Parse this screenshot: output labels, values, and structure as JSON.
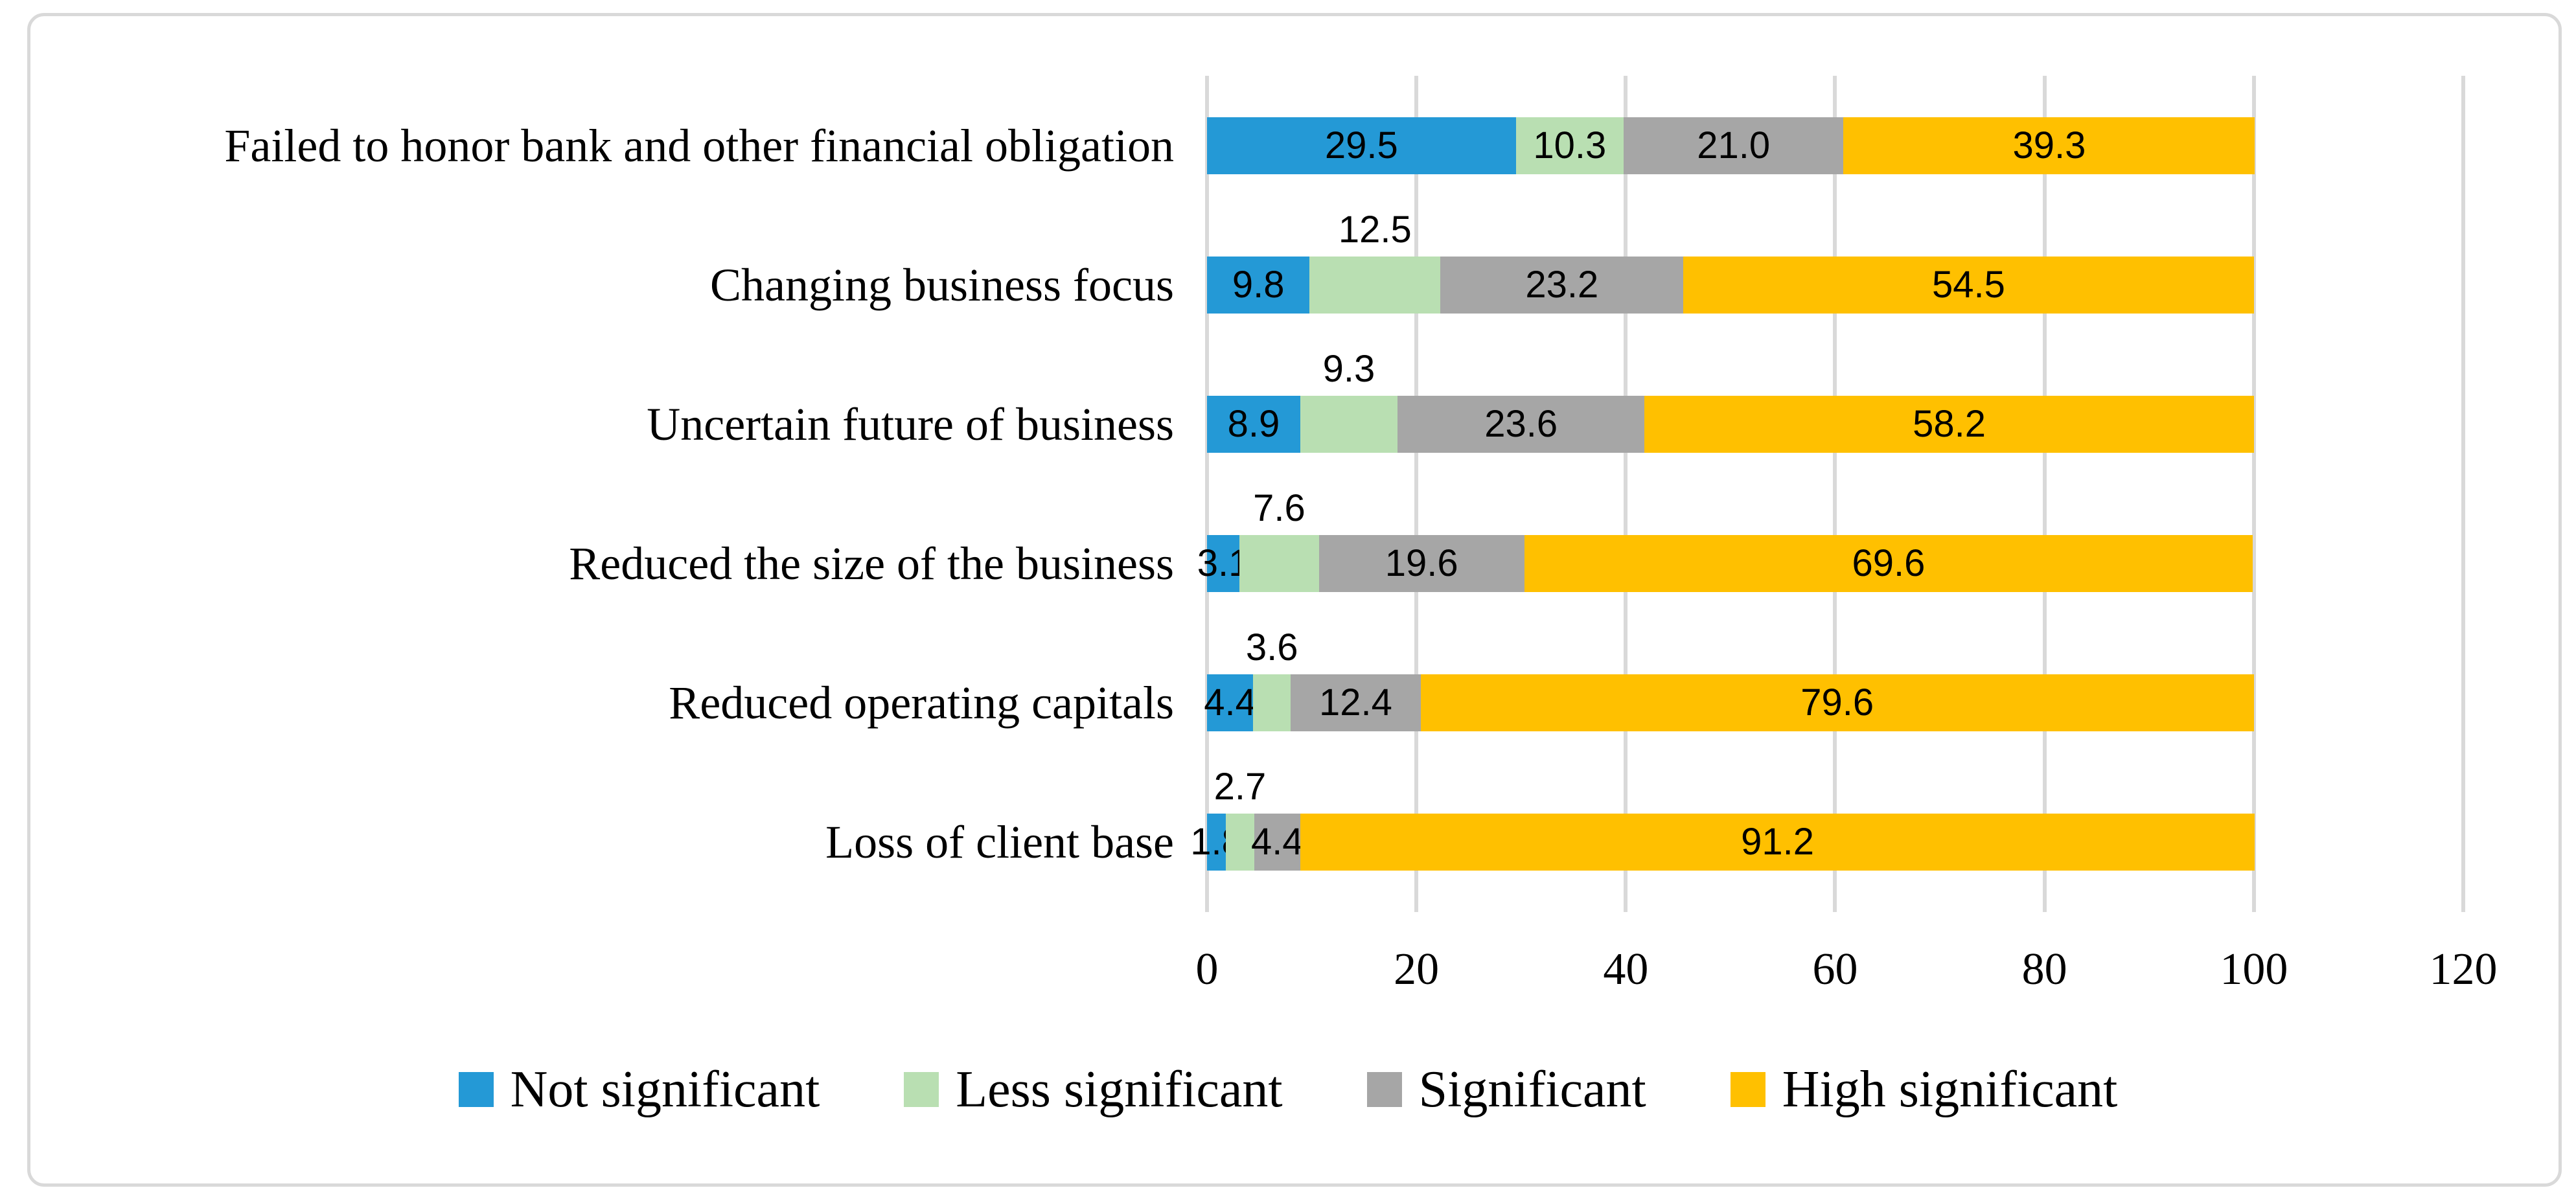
{
  "figure": {
    "background": "#ffffff",
    "border_color": "#D9D9D9"
  },
  "chart_data": {
    "type": "bar",
    "subtype": "horizontal-stacked",
    "title": "",
    "categories": [
      "Failed to honor bank and other financial obligation",
      "Changing business focus",
      "Uncertain future of business",
      "Reduced the size of the business",
      "Reduced operating capitals",
      "Loss of client base"
    ],
    "series": [
      {
        "name": "Not significant",
        "color": "#2499D6",
        "values": [
          29.5,
          9.8,
          8.9,
          3.1,
          4.4,
          1.8
        ],
        "labels": [
          "29.5",
          "9.8",
          "8.9",
          "3.1",
          "4.4",
          "1.8"
        ],
        "labels_above_bar": [
          false,
          false,
          false,
          false,
          false,
          false
        ]
      },
      {
        "name": "Less significant",
        "color": "#B9DFB2",
        "values": [
          10.3,
          12.5,
          9.3,
          7.6,
          3.6,
          2.7
        ],
        "labels": [
          "10.3",
          "12.5",
          "9.3",
          "7.6",
          "3.6",
          "2.7"
        ],
        "labels_above_bar": [
          false,
          true,
          true,
          true,
          true,
          true
        ]
      },
      {
        "name": "Significant",
        "color": "#A6A6A6",
        "values": [
          21.0,
          23.2,
          23.6,
          19.6,
          12.4,
          4.4
        ],
        "labels": [
          "21.0",
          "23.2",
          "23.6",
          "19.6",
          "12.4",
          "4.4"
        ],
        "labels_above_bar": [
          false,
          false,
          false,
          false,
          false,
          false
        ]
      },
      {
        "name": "High significant",
        "color": "#FFC000",
        "values": [
          39.3,
          54.5,
          58.2,
          69.6,
          79.6,
          91.2
        ],
        "labels": [
          "39.3",
          "54.5",
          "58.2",
          "69.6",
          "79.6",
          "91.2"
        ],
        "labels_above_bar": [
          false,
          false,
          false,
          false,
          false,
          false
        ]
      }
    ],
    "x_axis": {
      "range": [
        0,
        120
      ],
      "ticks": [
        0,
        20,
        40,
        60,
        80,
        100,
        120
      ],
      "tick_labels": [
        "0",
        "20",
        "40",
        "60",
        "80",
        "100",
        "120"
      ]
    },
    "gridlines": {
      "visible": true,
      "color": "#D9D9D9"
    },
    "legend": {
      "position": "bottom",
      "items": [
        {
          "label": "Not significant",
          "color": "#2499D6"
        },
        {
          "label": "Less significant",
          "color": "#B9DFB2"
        },
        {
          "label": "Significant",
          "color": "#A6A6A6"
        },
        {
          "label": "High significant",
          "color": "#FFC000"
        }
      ]
    },
    "label_text_color": "#000000"
  }
}
